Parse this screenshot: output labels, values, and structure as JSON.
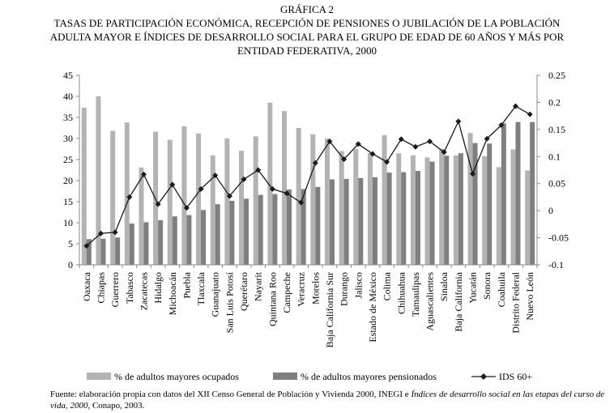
{
  "figure": {
    "label": "GRÁFICA 2",
    "title_lines": [
      "TASAS DE PARTICIPACIÓN ECONÓMICA, RECEPCIÓN DE PENSIONES O JUBILACIÓN DE LA POBLACIÓN",
      "ADULTA MAYOR E ÍNDICES DE DESARROLLO SOCIAL PARA EL GRUPO DE EDAD DE 60 AÑOS Y MÁS POR",
      "ENTIDAD FEDERATIVA, 2000"
    ],
    "source": {
      "prefix": "Fuente: elaboración propia con datos del XII Censo General de Población y Vivienda 2000, INEGI e ",
      "italic": "Índices de desarrollo social en las etapas del curso de vida, 2000,",
      "suffix": " Conapo, 2003."
    }
  },
  "colors": {
    "ocupados": "#b3b3b3",
    "pensionados": "#7f7f7f",
    "ids": "#1a1a1a",
    "axis": "#888888"
  },
  "chart_data": {
    "type": "bar",
    "categories": [
      "Oaxaca",
      "Chiapas",
      "Guerrero",
      "Tabasco",
      "Zacatecas",
      "Hidalgo",
      "Michoacán",
      "Puebla",
      "Tlaxcala",
      "Guanajuato",
      "San Luis Potosí",
      "Querétaro",
      "Nayarit",
      "Quintana Roo",
      "Campeche",
      "Veracruz",
      "Morelos",
      "Baja California Sur",
      "Durango",
      "Jalisco",
      "Estado de México",
      "Colima",
      "Chihuahua",
      "Tamaulipas",
      "Aguascalientes",
      "Sinaloa",
      "Baja California",
      "Yucatán",
      "Sonora",
      "Coahuila",
      "Distrito Federal",
      "Nuevo León"
    ],
    "series": [
      {
        "name": "% de adultos mayores ocupados",
        "axis": "left",
        "type": "bar",
        "values": [
          37.3,
          40,
          31.8,
          33.8,
          23.1,
          31.6,
          29.7,
          32.9,
          31.2,
          26,
          30,
          27.1,
          30.5,
          38.5,
          36.5,
          32.5,
          31,
          30,
          27,
          27.5,
          26.5,
          30.8,
          26.5,
          26,
          25.5,
          27.5,
          26,
          31.3,
          25.8,
          23.2,
          27.4,
          22.4
        ]
      },
      {
        "name": "% de adultos mayores pensionados",
        "axis": "left",
        "type": "bar",
        "values": [
          6.1,
          6.2,
          6.5,
          9.8,
          10.1,
          10.6,
          11.5,
          11.8,
          13,
          14.4,
          15.2,
          15.7,
          16.6,
          16.8,
          17.9,
          18,
          18.5,
          20.3,
          20.4,
          20.6,
          20.8,
          21.9,
          22,
          22.3,
          24.5,
          25.9,
          26.5,
          28.9,
          28.8,
          33.6,
          33.9,
          33.9
        ]
      },
      {
        "name": "IDS 60+",
        "axis": "right",
        "type": "line",
        "values": [
          -0.065,
          -0.042,
          -0.04,
          0.025,
          0.067,
          0.012,
          0.048,
          0.005,
          0.04,
          0.065,
          0.027,
          0.058,
          0.075,
          0.04,
          0.032,
          0.015,
          0.088,
          0.128,
          0.095,
          0.123,
          0.105,
          0.09,
          0.132,
          0.118,
          0.128,
          0.108,
          0.165,
          0.068,
          0.133,
          0.158,
          0.193,
          0.178
        ]
      }
    ],
    "y_left": {
      "min": 0,
      "max": 45,
      "step": 5,
      "ticks": [
        "0",
        "5",
        "10",
        "15",
        "20",
        "25",
        "30",
        "35",
        "40",
        "45"
      ]
    },
    "y_right": {
      "min": -0.1,
      "max": 0.25,
      "step": 0.05,
      "ticks": [
        "-0.1",
        "-0.05",
        "0",
        "0.05",
        "0.1",
        "0.15",
        "0.2",
        "0.25"
      ]
    },
    "grid": false,
    "legend_position": "bottom"
  }
}
